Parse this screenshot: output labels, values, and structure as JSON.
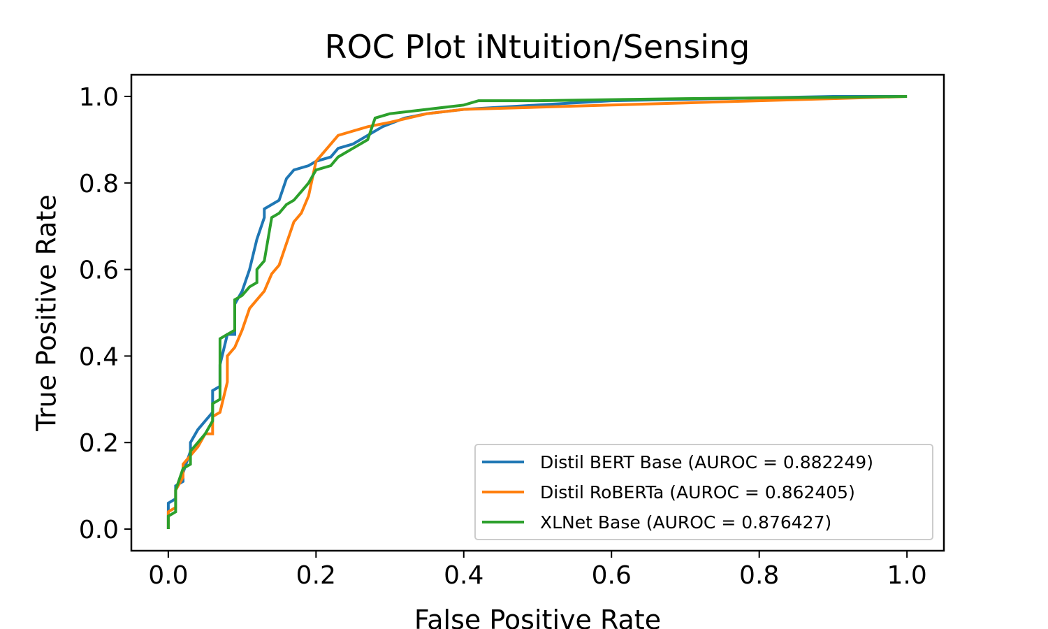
{
  "chart_data": {
    "type": "line",
    "title": "ROC Plot iNtuition/Sensing",
    "xlabel": "False Positive Rate",
    "ylabel": "True Positive Rate",
    "xlim": [
      -0.05,
      1.05
    ],
    "ylim": [
      -0.05,
      1.05
    ],
    "xticks": [
      "0.0",
      "0.2",
      "0.4",
      "0.6",
      "0.8",
      "1.0"
    ],
    "yticks": [
      "0.0",
      "0.2",
      "0.4",
      "0.6",
      "0.8",
      "1.0"
    ],
    "grid": false,
    "legend_position": "lower-right",
    "series": [
      {
        "name": "Distil BERT Base (AUROC = 0.882249)",
        "color": "#1f77b4",
        "points": [
          [
            0.0,
            0.0
          ],
          [
            0.0,
            0.06
          ],
          [
            0.01,
            0.07
          ],
          [
            0.01,
            0.1
          ],
          [
            0.02,
            0.11
          ],
          [
            0.02,
            0.13
          ],
          [
            0.03,
            0.18
          ],
          [
            0.03,
            0.2
          ],
          [
            0.04,
            0.23
          ],
          [
            0.05,
            0.25
          ],
          [
            0.06,
            0.27
          ],
          [
            0.06,
            0.32
          ],
          [
            0.07,
            0.33
          ],
          [
            0.07,
            0.38
          ],
          [
            0.08,
            0.45
          ],
          [
            0.09,
            0.45
          ],
          [
            0.09,
            0.52
          ],
          [
            0.1,
            0.55
          ],
          [
            0.11,
            0.6
          ],
          [
            0.12,
            0.67
          ],
          [
            0.13,
            0.72
          ],
          [
            0.13,
            0.74
          ],
          [
            0.15,
            0.76
          ],
          [
            0.16,
            0.81
          ],
          [
            0.17,
            0.83
          ],
          [
            0.19,
            0.84
          ],
          [
            0.2,
            0.85
          ],
          [
            0.22,
            0.86
          ],
          [
            0.23,
            0.88
          ],
          [
            0.25,
            0.89
          ],
          [
            0.27,
            0.91
          ],
          [
            0.29,
            0.93
          ],
          [
            0.32,
            0.95
          ],
          [
            0.35,
            0.96
          ],
          [
            0.4,
            0.97
          ],
          [
            0.5,
            0.98
          ],
          [
            0.6,
            0.99
          ],
          [
            0.75,
            0.995
          ],
          [
            0.9,
            1.0
          ],
          [
            1.0,
            1.0
          ]
        ]
      },
      {
        "name": "Distil RoBERTa (AUROC = 0.862405)",
        "color": "#ff7f0e",
        "points": [
          [
            0.0,
            0.0
          ],
          [
            0.0,
            0.04
          ],
          [
            0.01,
            0.05
          ],
          [
            0.01,
            0.09
          ],
          [
            0.02,
            0.12
          ],
          [
            0.02,
            0.15
          ],
          [
            0.03,
            0.17
          ],
          [
            0.04,
            0.19
          ],
          [
            0.05,
            0.22
          ],
          [
            0.06,
            0.22
          ],
          [
            0.06,
            0.26
          ],
          [
            0.07,
            0.27
          ],
          [
            0.08,
            0.34
          ],
          [
            0.08,
            0.4
          ],
          [
            0.09,
            0.42
          ],
          [
            0.1,
            0.46
          ],
          [
            0.11,
            0.51
          ],
          [
            0.12,
            0.53
          ],
          [
            0.13,
            0.55
          ],
          [
            0.14,
            0.59
          ],
          [
            0.15,
            0.61
          ],
          [
            0.16,
            0.66
          ],
          [
            0.17,
            0.71
          ],
          [
            0.18,
            0.73
          ],
          [
            0.19,
            0.77
          ],
          [
            0.2,
            0.85
          ],
          [
            0.21,
            0.87
          ],
          [
            0.22,
            0.89
          ],
          [
            0.23,
            0.91
          ],
          [
            0.25,
            0.92
          ],
          [
            0.27,
            0.93
          ],
          [
            0.3,
            0.94
          ],
          [
            0.35,
            0.96
          ],
          [
            0.4,
            0.97
          ],
          [
            0.5,
            0.975
          ],
          [
            0.6,
            0.98
          ],
          [
            0.7,
            0.985
          ],
          [
            0.8,
            0.99
          ],
          [
            0.9,
            0.995
          ],
          [
            1.0,
            1.0
          ]
        ]
      },
      {
        "name": "XLNet Base (AUROC = 0.876427)",
        "color": "#2ca02c",
        "points": [
          [
            0.0,
            0.0
          ],
          [
            0.0,
            0.03
          ],
          [
            0.01,
            0.04
          ],
          [
            0.01,
            0.09
          ],
          [
            0.02,
            0.14
          ],
          [
            0.03,
            0.15
          ],
          [
            0.03,
            0.18
          ],
          [
            0.04,
            0.2
          ],
          [
            0.05,
            0.22
          ],
          [
            0.06,
            0.25
          ],
          [
            0.06,
            0.29
          ],
          [
            0.07,
            0.3
          ],
          [
            0.07,
            0.44
          ],
          [
            0.08,
            0.45
          ],
          [
            0.09,
            0.46
          ],
          [
            0.09,
            0.53
          ],
          [
            0.1,
            0.54
          ],
          [
            0.11,
            0.56
          ],
          [
            0.12,
            0.57
          ],
          [
            0.12,
            0.6
          ],
          [
            0.13,
            0.62
          ],
          [
            0.14,
            0.72
          ],
          [
            0.15,
            0.73
          ],
          [
            0.16,
            0.75
          ],
          [
            0.17,
            0.76
          ],
          [
            0.18,
            0.78
          ],
          [
            0.19,
            0.8
          ],
          [
            0.2,
            0.83
          ],
          [
            0.22,
            0.84
          ],
          [
            0.23,
            0.86
          ],
          [
            0.25,
            0.88
          ],
          [
            0.27,
            0.9
          ],
          [
            0.28,
            0.95
          ],
          [
            0.3,
            0.96
          ],
          [
            0.35,
            0.97
          ],
          [
            0.4,
            0.98
          ],
          [
            0.42,
            0.99
          ],
          [
            0.5,
            0.99
          ],
          [
            0.7,
            0.995
          ],
          [
            0.9,
            0.998
          ],
          [
            1.0,
            1.0
          ]
        ]
      }
    ]
  }
}
